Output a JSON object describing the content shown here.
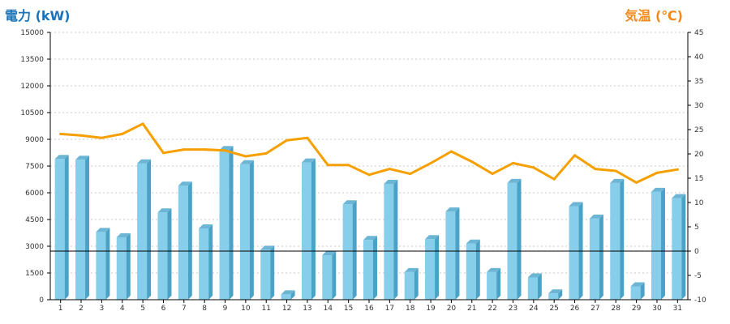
{
  "chart_data": {
    "type": "bar",
    "title_left": "電力 (kW)",
    "title_right": "気温 (℃)",
    "categories": [
      "1",
      "2",
      "3",
      "4",
      "5",
      "6",
      "7",
      "8",
      "9",
      "10",
      "11",
      "12",
      "13",
      "14",
      "15",
      "16",
      "17",
      "18",
      "19",
      "20",
      "21",
      "22",
      "23",
      "24",
      "25",
      "26",
      "27",
      "28",
      "29",
      "30",
      "31"
    ],
    "series": [
      {
        "name": "",
        "type": "bar",
        "axis": "left",
        "values": [
          7900,
          7850,
          3800,
          3500,
          7650,
          4900,
          6400,
          4000,
          8400,
          7600,
          2800,
          300,
          7700,
          2500,
          5350,
          3350,
          6500,
          1550,
          3400,
          4950,
          3150,
          1550,
          6550,
          1250,
          350,
          5250,
          4550,
          6550,
          750,
          6050,
          5700
        ]
      },
      {
        "name": "",
        "type": "line",
        "axis": "right",
        "values": [
          24.1,
          23.8,
          23.3,
          24.1,
          26.2,
          20.2,
          20.9,
          20.9,
          20.7,
          19.5,
          20.1,
          22.8,
          23.3,
          17.7,
          17.7,
          15.7,
          16.9,
          15.9,
          18.1,
          20.5,
          18.4,
          15.9,
          18.1,
          17.2,
          14.8,
          19.7,
          16.9,
          16.5,
          14.1,
          16.1,
          16.8
        ]
      }
    ],
    "ylim_left": [
      0,
      15000
    ],
    "yticks_left": [
      "0",
      "1500",
      "3000",
      "4500",
      "6000",
      "7500",
      "9000",
      "10500",
      "12000",
      "13500",
      "15000"
    ],
    "ylim_right": [
      -10,
      45
    ],
    "yticks_right": [
      "-10",
      "-5",
      "0",
      "5",
      "10",
      "15",
      "20",
      "25",
      "30",
      "35",
      "40",
      "45"
    ],
    "grid": true,
    "zero_line_right": 0,
    "colors": {
      "bar_front": "#87ceeb",
      "bar_side": "#4aa3c6",
      "bar_top": "#6db5d4",
      "line": "#f5a000",
      "title_left": "#1a73b8",
      "title_right": "#f08a1c",
      "grid": "#c8c8c8",
      "axis": "#000000"
    }
  }
}
